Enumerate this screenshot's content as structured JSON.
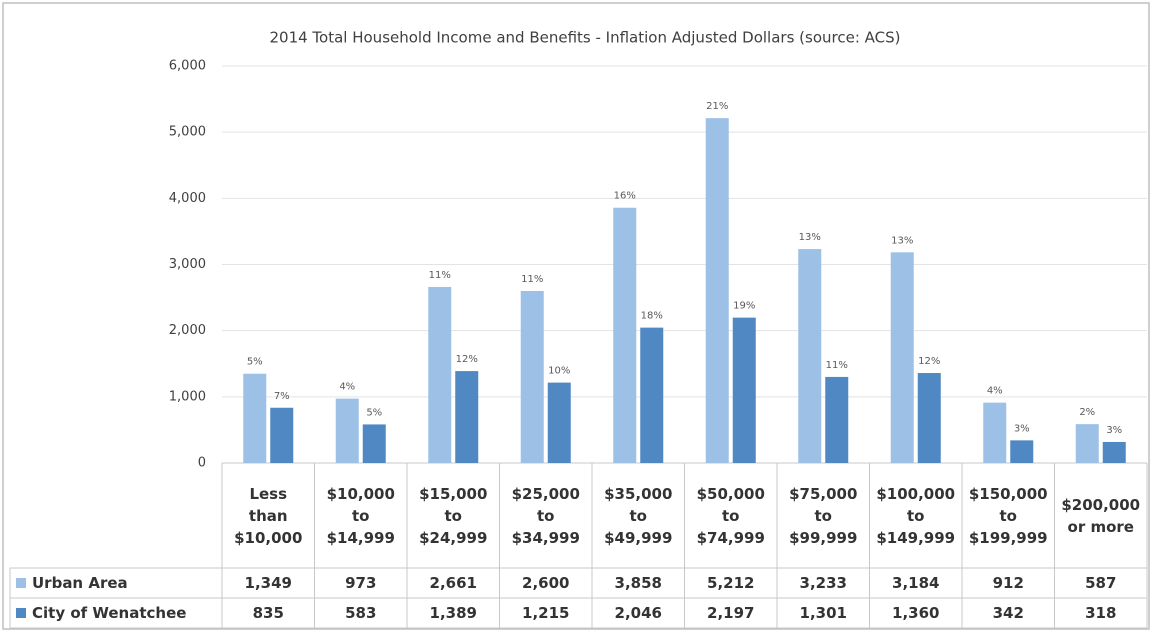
{
  "chart_data": {
    "type": "bar",
    "title": "2014 Total Household Income and Benefits - Inflation Adjusted Dollars (source: ACS)",
    "categories": [
      "Less\nthan\n$10,000",
      "$10,000\nto\n$14,999",
      "$15,000\nto\n$24,999",
      "$25,000\nto\n$34,999",
      "$35,000\nto\n$49,999",
      "$50,000\nto\n$74,999",
      "$75,000\nto\n$99,999",
      "$100,000\nto\n$149,999",
      "$150,000\nto\n$199,999",
      "$200,000\nor more"
    ],
    "series": [
      {
        "name": "Urban Area",
        "color": "#9cc0e6",
        "values": [
          1349,
          973,
          2661,
          2600,
          3858,
          5212,
          3233,
          3184,
          912,
          587
        ],
        "value_labels": [
          "1,349",
          "973",
          "2,661",
          "2,600",
          "3,858",
          "5,212",
          "3,233",
          "3,184",
          "912",
          "587"
        ],
        "percent_labels": [
          "5%",
          "4%",
          "11%",
          "11%",
          "16%",
          "21%",
          "13%",
          "13%",
          "4%",
          "2%"
        ]
      },
      {
        "name": "City of Wenatchee",
        "color": "#4f88c2",
        "values": [
          835,
          583,
          1389,
          1215,
          2046,
          2197,
          1301,
          1360,
          342,
          318
        ],
        "value_labels": [
          "835",
          "583",
          "1,389",
          "1,215",
          "2,046",
          "2,197",
          "1,301",
          "1,360",
          "342",
          "318"
        ],
        "percent_labels": [
          "7%",
          "5%",
          "12%",
          "10%",
          "18%",
          "19%",
          "11%",
          "12%",
          "3%",
          "3%"
        ]
      }
    ],
    "ylim": [
      0,
      6000
    ],
    "yticks": [
      0,
      {
        "value": 1000,
        "label": "1,000"
      },
      {
        "value": 2000,
        "label": "2,000"
      },
      {
        "value": 3000,
        "label": "3,000"
      },
      {
        "value": 4000,
        "label": "4,000"
      },
      {
        "value": 5000,
        "label": "5,000"
      },
      {
        "value": 6000,
        "label": "6,000"
      }
    ],
    "grid": true
  }
}
